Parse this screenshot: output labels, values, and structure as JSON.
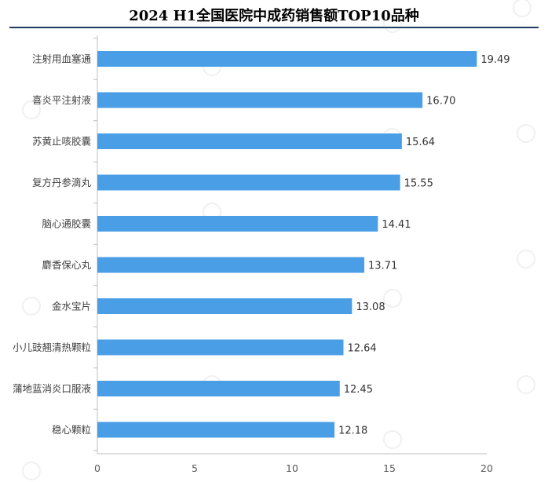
{
  "header": {
    "title": "2024 H1全国医院中成药销售额TOP10品种"
  },
  "colors": {
    "bar": "#4a9ee6",
    "title_rule": "#1f3a60",
    "axis": "#bfbfbf"
  },
  "chart_data": {
    "type": "bar",
    "orientation": "horizontal",
    "title": "2024 H1全国医院中成药销售额TOP10品种",
    "categories": [
      "注射用血塞通",
      "喜炎平注射液",
      "苏黄止咳胶囊",
      "复方丹参滴丸",
      "脑心通胶囊",
      "麝香保心丸",
      "金水宝片",
      "小儿豉翘清热颗粒",
      "蒲地蓝消炎口服液",
      "稳心颗粒"
    ],
    "values": [
      19.49,
      16.7,
      15.64,
      15.55,
      14.41,
      13.71,
      13.08,
      12.64,
      12.45,
      12.18
    ],
    "value_labels": [
      "19.49",
      "16.70",
      "15.64",
      "15.55",
      "14.41",
      "13.71",
      "13.08",
      "12.64",
      "12.45",
      "12.18"
    ],
    "xlim": [
      0,
      20
    ],
    "xticks": [
      "0",
      "5",
      "10",
      "15",
      "20"
    ],
    "xlabel": "",
    "ylabel": "",
    "grid": false,
    "legend": "none"
  }
}
